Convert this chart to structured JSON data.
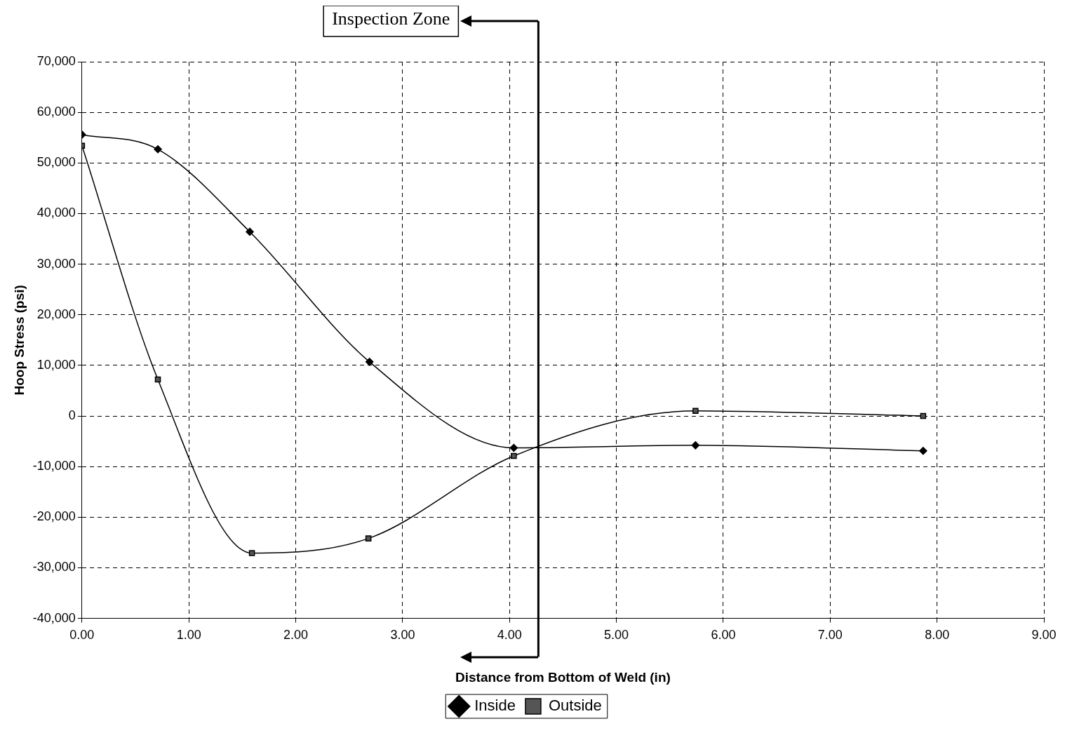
{
  "chart_data": {
    "type": "line",
    "xlabel": "Distance from Bottom of Weld (in)",
    "ylabel": "Hoop Stress (psi)",
    "series": [
      {
        "name": "Inside",
        "color": "#000000",
        "marker": "diamond",
        "x": [
          0,
          0.71,
          1.57,
          2.69,
          4.04,
          5.74,
          7.87
        ],
        "values": [
          55600,
          52700,
          36400,
          10700,
          -6300,
          -5800,
          -6900
        ]
      },
      {
        "name": "Outside",
        "color": "#000000",
        "marker": "square",
        "x": [
          0,
          0.71,
          1.59,
          2.68,
          4.04,
          5.74,
          7.87
        ],
        "values": [
          53400,
          7200,
          -27100,
          -24200,
          -7900,
          1000,
          0
        ]
      }
    ],
    "xlim": [
      0,
      9
    ],
    "xticks": [
      {
        "value": 0,
        "label": "0.00"
      },
      {
        "value": 1,
        "label": "1.00"
      },
      {
        "value": 2,
        "label": "2.00"
      },
      {
        "value": 3,
        "label": "3.00"
      },
      {
        "value": 4,
        "label": "4.00"
      },
      {
        "value": 5,
        "label": "5.00"
      },
      {
        "value": 6,
        "label": "6.00"
      },
      {
        "value": 7,
        "label": "7.00"
      },
      {
        "value": 8,
        "label": "8.00"
      },
      {
        "value": 9,
        "label": "9.00"
      }
    ],
    "ylim": [
      -40000,
      70000
    ],
    "yticks": [
      {
        "value": -40000,
        "label": "-40,000"
      },
      {
        "value": -30000,
        "label": "-30,000"
      },
      {
        "value": -20000,
        "label": "-20,000"
      },
      {
        "value": -10000,
        "label": "-10,000"
      },
      {
        "value": 0,
        "label": "0"
      },
      {
        "value": 10000,
        "label": "10,000"
      },
      {
        "value": 20000,
        "label": "20,000"
      },
      {
        "value": 30000,
        "label": "30,000"
      },
      {
        "value": 40000,
        "label": "40,000"
      },
      {
        "value": 50000,
        "label": "50,000"
      },
      {
        "value": 60000,
        "label": "60,000"
      },
      {
        "value": 70000,
        "label": "70,000"
      }
    ],
    "ref_lines": [
      {
        "axis": "x",
        "value": 4.27,
        "label": "Inspection Zone"
      }
    ],
    "grid": true,
    "legend": "bottom",
    "line_style": "solid"
  }
}
